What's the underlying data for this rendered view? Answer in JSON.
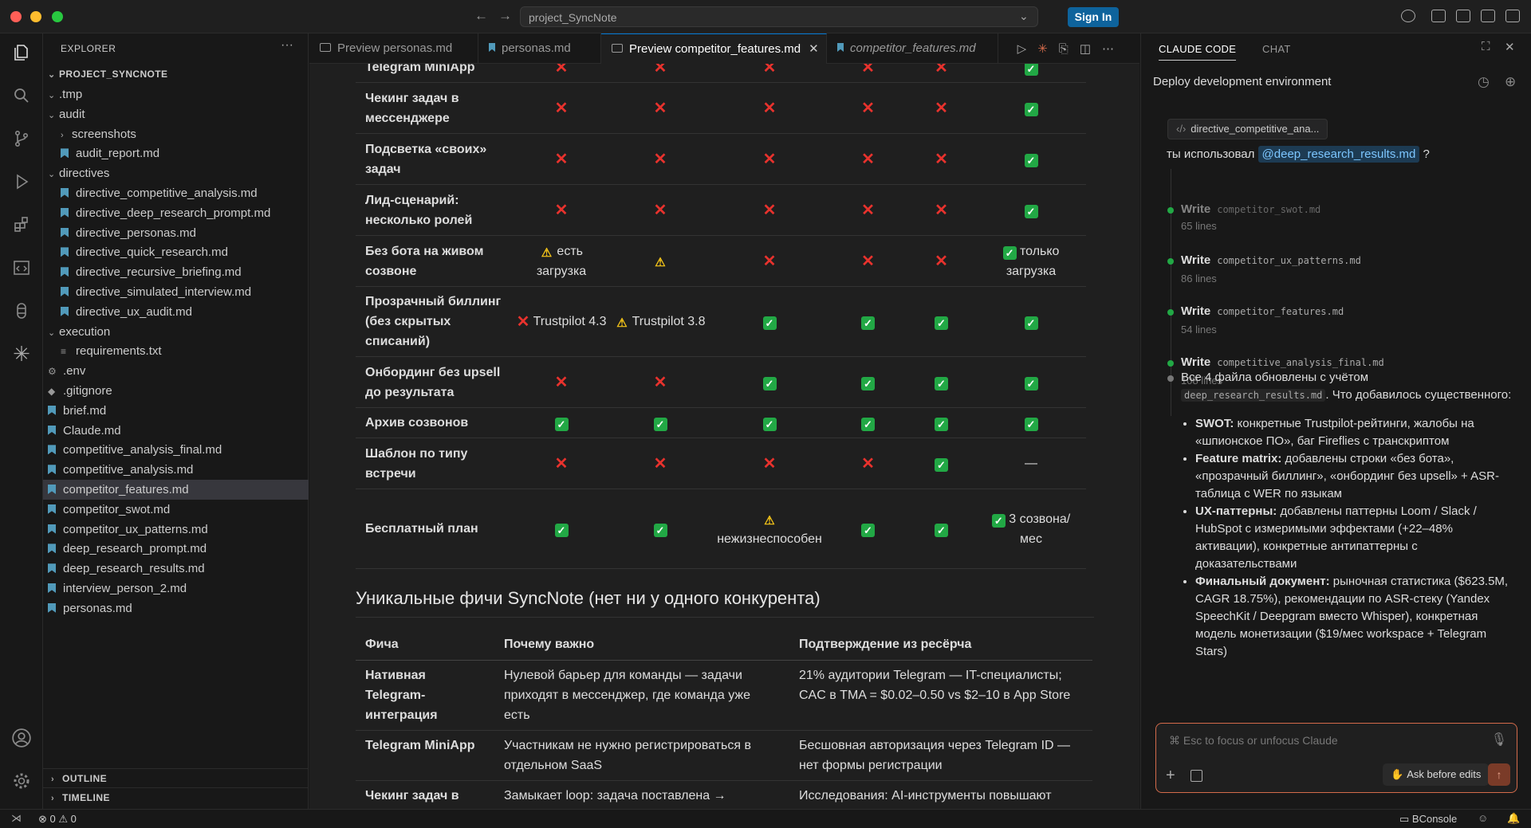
{
  "window": {
    "search_text": "project_SyncNote",
    "signin_label": "Sign In"
  },
  "sidebar": {
    "title": "EXPLORER",
    "root": "PROJECT_SYNCNOTE",
    "items": [
      {
        "label": ".tmp",
        "kind": "folder",
        "depth": 1,
        "open": true
      },
      {
        "label": "audit",
        "kind": "folder",
        "depth": 1,
        "open": true
      },
      {
        "label": "screenshots",
        "kind": "folder",
        "depth": 2,
        "open": false
      },
      {
        "label": "audit_report.md",
        "kind": "md",
        "depth": 2
      },
      {
        "label": "directives",
        "kind": "folder",
        "depth": 1,
        "open": true
      },
      {
        "label": "directive_competitive_analysis.md",
        "kind": "md",
        "depth": 2
      },
      {
        "label": "directive_deep_research_prompt.md",
        "kind": "md",
        "depth": 2
      },
      {
        "label": "directive_personas.md",
        "kind": "md",
        "depth": 2
      },
      {
        "label": "directive_quick_research.md",
        "kind": "md",
        "depth": 2
      },
      {
        "label": "directive_recursive_briefing.md",
        "kind": "md",
        "depth": 2
      },
      {
        "label": "directive_simulated_interview.md",
        "kind": "md",
        "depth": 2
      },
      {
        "label": "directive_ux_audit.md",
        "kind": "md",
        "depth": 2
      },
      {
        "label": "execution",
        "kind": "folder",
        "depth": 1,
        "open": true
      },
      {
        "label": "requirements.txt",
        "kind": "txt",
        "depth": 2
      },
      {
        "label": ".env",
        "kind": "gear",
        "depth": 1
      },
      {
        "label": ".gitignore",
        "kind": "git",
        "depth": 1
      },
      {
        "label": "brief.md",
        "kind": "md",
        "depth": 1
      },
      {
        "label": "Claude.md",
        "kind": "md",
        "depth": 1
      },
      {
        "label": "competitive_analysis_final.md",
        "kind": "md",
        "depth": 1
      },
      {
        "label": "competitive_analysis.md",
        "kind": "md",
        "depth": 1
      },
      {
        "label": "competitor_features.md",
        "kind": "md",
        "depth": 1,
        "selected": true
      },
      {
        "label": "competitor_swot.md",
        "kind": "md",
        "depth": 1
      },
      {
        "label": "competitor_ux_patterns.md",
        "kind": "md",
        "depth": 1
      },
      {
        "label": "deep_research_prompt.md",
        "kind": "md",
        "depth": 1
      },
      {
        "label": "deep_research_results.md",
        "kind": "md",
        "depth": 1
      },
      {
        "label": "interview_person_2.md",
        "kind": "md",
        "depth": 1
      },
      {
        "label": "personas.md",
        "kind": "md",
        "depth": 1
      }
    ],
    "outline": "OUTLINE",
    "timeline": "TIMELINE"
  },
  "tabs": [
    {
      "label": "Preview personas.md",
      "type": "preview"
    },
    {
      "label": "personas.md",
      "type": "md"
    },
    {
      "label": "Preview competitor_features.md",
      "type": "preview",
      "active": true
    },
    {
      "label": "competitor_features.md",
      "type": "md",
      "italic": true
    }
  ],
  "features": {
    "rows": [
      {
        "name": "Telegram MiniApp",
        "cells": [
          "n",
          "n",
          "n",
          "n",
          "n",
          "y"
        ]
      },
      {
        "name": "Чекинг задач в мессенджере",
        "cells": [
          "n",
          "n",
          "n",
          "n",
          "n",
          "y"
        ]
      },
      {
        "name": "Подсветка «своих» задач",
        "cells": [
          "n",
          "n",
          "n",
          "n",
          "n",
          "y"
        ]
      },
      {
        "name": "Лид-сценарий: несколько ролей",
        "cells": [
          "n",
          "n",
          "n",
          "n",
          "n",
          "y"
        ]
      },
      {
        "name": "Без бота на живом созвоне",
        "cells": [
          "w|есть загрузка",
          "w",
          "n",
          "n",
          "n",
          "y|только загрузка"
        ]
      },
      {
        "name": "Прозрачный биллинг (без скрытых списаний)",
        "cells": [
          "n|Trustpilot 4.3",
          "w|Trustpilot 3.8",
          "y",
          "y",
          "y",
          "y"
        ]
      },
      {
        "name": "Онбординг без upsell до результата",
        "cells": [
          "n",
          "n",
          "y",
          "y",
          "y",
          "y"
        ]
      },
      {
        "name": "Архив созвонов",
        "cells": [
          "y",
          "y",
          "y",
          "y",
          "y",
          "y"
        ]
      },
      {
        "name": "Шаблон по типу встречи",
        "cells": [
          "n",
          "n",
          "n",
          "n",
          "y",
          "—"
        ]
      },
      {
        "name": "Бесплатный план",
        "cells": [
          "y",
          "y",
          "w|нежизнеспособен",
          "y",
          "y",
          "y|3 созвона/ мес"
        ]
      }
    ]
  },
  "unique": {
    "heading": "Уникальные фичи SyncNote (нет ни у одного конкурента)",
    "headers": [
      "Фича",
      "Почему важно",
      "Подтверждение из ресёрча"
    ],
    "rows": [
      [
        "Нативная Telegram-интеграция",
        "Нулевой барьер для команды — задачи приходят в мессенджер, где команда уже есть",
        "21% аудитории Telegram — IT-специалисты; CAC в TMA = $0.02–0.50 vs $2–10 в App Store"
      ],
      [
        "Telegram MiniApp",
        "Участникам не нужно регистрироваться в отдельном SaaS",
        "Бесшовная авторизация через Telegram ID — нет формы регистрации"
      ],
      [
        "Чекинг задач в",
        "Замыкает loop: задача поставлена →",
        "Исследования: AI-инструменты повышают"
      ]
    ]
  },
  "panel": {
    "tab1": "CLAUDE CODE",
    "tab2": "CHAT",
    "title": "Deploy development environment",
    "chip": "directive_competitive_ana...",
    "question_prefix": "ты использовал",
    "mention": "@deep_research_results.md",
    "question_suffix": "?",
    "steps": [
      {
        "verb": "Write",
        "file": "competitor_swot.md",
        "lines": "65 lines"
      },
      {
        "verb": "Write",
        "file": "competitor_ux_patterns.md",
        "lines": "86 lines"
      },
      {
        "verb": "Write",
        "file": "competitor_features.md",
        "lines": "54 lines"
      },
      {
        "verb": "Write",
        "file": "competitive_analysis_final.md",
        "lines": "108 lines"
      }
    ],
    "summary_a": "Все 4 файла обновлены с учётом",
    "summary_code": "deep_research_results.md",
    "summary_b": ". Что добавилось существенного:",
    "bullets": [
      {
        "b": "SWOT:",
        "t": " конкретные Trustpilot-рейтинги, жалобы на «шпионское ПО», баг Fireflies с транскриптом"
      },
      {
        "b": "Feature matrix:",
        "t": " добавлены строки «без бота», «прозрачный биллинг», «онбординг без upsell» + ASR-таблица с WER по языкам"
      },
      {
        "b": "UX-паттерны:",
        "t": " добавлены паттерны Loom / Slack / HubSpot с измеримыми эффектами (+22–48% активации), конкретные антипаттерны с доказательствами"
      },
      {
        "b": "Финальный документ:",
        "t": " рыночная статистика ($623.5M, CAGR 18.75%), рекомендации по ASR-стеку (Yandex SpeechKit / Deepgram вместо Whisper), конкретная модель монетизации ($19/мес workspace + Telegram Stars)"
      }
    ],
    "input_placeholder": "⌘ Esc to focus or unfocus Claude",
    "ask_label": "Ask before edits"
  },
  "status": {
    "errors": "0",
    "warnings": "0",
    "console": "BConsole"
  },
  "colors": {
    "accent": "#0078d4",
    "yes": "#22a845",
    "no": "#e8322d",
    "warn": "#f5c518",
    "claude": "#d46b4b"
  }
}
